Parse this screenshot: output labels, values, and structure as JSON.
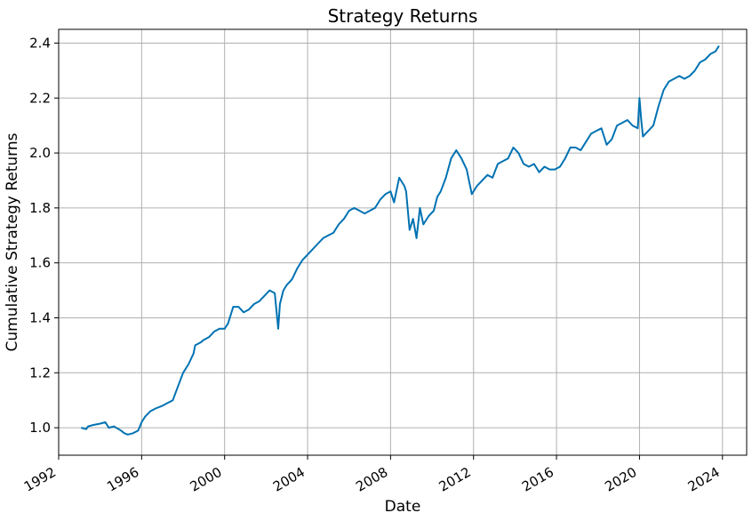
{
  "chart_data": {
    "type": "line",
    "title": "Strategy Returns",
    "xlabel": "Date",
    "ylabel": "Cumulative Strategy Returns",
    "grid": true,
    "line_color": "#0072b2",
    "xlim": [
      "1992-01-01",
      "2025-03-01"
    ],
    "ylim": [
      0.9,
      2.45
    ],
    "x_ticks": [
      "1992",
      "1996",
      "2000",
      "2004",
      "2008",
      "2012",
      "2016",
      "2020",
      "2024"
    ],
    "y_ticks": [
      "1.0",
      "1.2",
      "1.4",
      "1.6",
      "1.8",
      "2.0",
      "2.2",
      "2.4"
    ],
    "series": [
      {
        "x": [
          "1993-02",
          "1993-05",
          "1993-06",
          "1993-09",
          "1994-01",
          "1994-04",
          "1994-06",
          "1994-09",
          "1995-01",
          "1995-03",
          "1995-05",
          "1995-08",
          "1995-11",
          "1996-01",
          "1996-03",
          "1996-06",
          "1996-09",
          "1997-01",
          "1997-04",
          "1997-07",
          "1997-10",
          "1998-01",
          "1998-04",
          "1998-07",
          "1998-08",
          "1998-11",
          "1999-01",
          "1999-04",
          "1999-07",
          "1999-10",
          "2000-01",
          "2000-03",
          "2000-06",
          "2000-09",
          "2000-12",
          "2001-03",
          "2001-06",
          "2001-09",
          "2001-12",
          "2002-03",
          "2002-06",
          "2002-08",
          "2002-09",
          "2002-11",
          "2003-01",
          "2003-04",
          "2003-07",
          "2003-10",
          "2004-01",
          "2004-04",
          "2004-07",
          "2004-10",
          "2005-01",
          "2005-04",
          "2005-07",
          "2005-10",
          "2006-01",
          "2006-04",
          "2006-07",
          "2006-10",
          "2007-01",
          "2007-04",
          "2007-07",
          "2007-10",
          "2008-01",
          "2008-03",
          "2008-06",
          "2008-09",
          "2008-10",
          "2008-12",
          "2009-02",
          "2009-04",
          "2009-06",
          "2009-08",
          "2009-11",
          "2010-02",
          "2010-04",
          "2010-06",
          "2010-09",
          "2010-12",
          "2011-03",
          "2011-06",
          "2011-09",
          "2011-12",
          "2012-03",
          "2012-06",
          "2012-09",
          "2012-12",
          "2013-03",
          "2013-06",
          "2013-09",
          "2013-12",
          "2014-03",
          "2014-06",
          "2014-09",
          "2014-12",
          "2015-03",
          "2015-06",
          "2015-09",
          "2015-12",
          "2016-03",
          "2016-06",
          "2016-09",
          "2016-12",
          "2017-03",
          "2017-06",
          "2017-09",
          "2017-12",
          "2018-03",
          "2018-06",
          "2018-09",
          "2018-12",
          "2019-03",
          "2019-06",
          "2019-09",
          "2019-12",
          "2020-01",
          "2020-02",
          "2020-03",
          "2020-06",
          "2020-09",
          "2020-12",
          "2021-03",
          "2021-06",
          "2021-09",
          "2021-12",
          "2022-03",
          "2022-06",
          "2022-09",
          "2022-12",
          "2023-03",
          "2023-06",
          "2023-09",
          "2023-11"
        ],
        "y": [
          1.0,
          0.995,
          1.005,
          1.01,
          1.015,
          1.02,
          1.0,
          1.005,
          0.99,
          0.98,
          0.975,
          0.98,
          0.99,
          1.02,
          1.04,
          1.06,
          1.07,
          1.08,
          1.09,
          1.1,
          1.15,
          1.2,
          1.23,
          1.27,
          1.3,
          1.31,
          1.32,
          1.33,
          1.35,
          1.36,
          1.36,
          1.38,
          1.44,
          1.44,
          1.42,
          1.43,
          1.45,
          1.46,
          1.48,
          1.5,
          1.49,
          1.36,
          1.45,
          1.5,
          1.52,
          1.54,
          1.58,
          1.61,
          1.63,
          1.65,
          1.67,
          1.69,
          1.7,
          1.71,
          1.74,
          1.76,
          1.79,
          1.8,
          1.79,
          1.78,
          1.79,
          1.8,
          1.83,
          1.85,
          1.86,
          1.82,
          1.91,
          1.88,
          1.86,
          1.72,
          1.76,
          1.69,
          1.8,
          1.74,
          1.77,
          1.79,
          1.84,
          1.86,
          1.91,
          1.98,
          2.01,
          1.98,
          1.94,
          1.85,
          1.88,
          1.9,
          1.92,
          1.91,
          1.96,
          1.97,
          1.98,
          2.02,
          2.0,
          1.96,
          1.95,
          1.96,
          1.93,
          1.95,
          1.94,
          1.94,
          1.95,
          1.98,
          2.02,
          2.02,
          2.01,
          2.04,
          2.07,
          2.08,
          2.09,
          2.03,
          2.05,
          2.1,
          2.11,
          2.12,
          2.1,
          2.09,
          2.2,
          2.12,
          2.06,
          2.08,
          2.1,
          2.17,
          2.23,
          2.26,
          2.27,
          2.28,
          2.27,
          2.28,
          2.3,
          2.33,
          2.34,
          2.36,
          2.37,
          2.39
        ]
      }
    ]
  }
}
